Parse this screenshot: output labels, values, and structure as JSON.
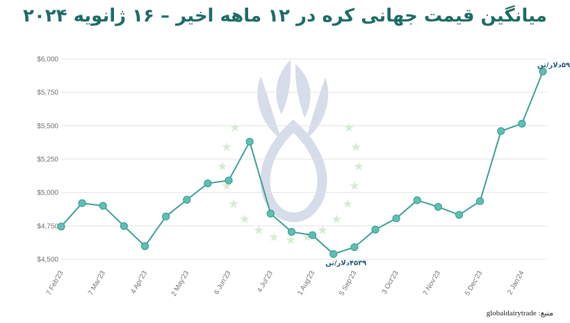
{
  "chart_data": {
    "type": "line",
    "title": "میانگین قیمت جهانی کره در ۱۲ ماهه اخیر – ۱۶ ژانویه ۲۰۲۴",
    "xlabel": "",
    "ylabel": "",
    "ylim": [
      4500,
      6000
    ],
    "yticks": [
      "$4,500",
      "$4,750",
      "$5,000",
      "$5,250",
      "$5,500",
      "$5,750",
      "$6,000"
    ],
    "ytick_values": [
      4500,
      4750,
      5000,
      5250,
      5500,
      5750,
      6000
    ],
    "xtick_labels": [
      "7 Feb'23",
      "7 Mar'23",
      "4 Apr'23",
      "2 May'23",
      "6 Jun'23",
      "4 Jul'23",
      "1 Aug'23",
      "5 Sep'23",
      "3 Oct'23",
      "7 Nov'23",
      "5 Dec'23",
      "2 Jan'24"
    ],
    "xtick_indices": [
      0,
      2,
      4,
      6,
      8,
      10,
      12,
      14,
      16,
      18,
      20,
      22
    ],
    "grid": true,
    "legend": "none",
    "line_color": "#3a9e94",
    "marker_color": "#5fbfb3",
    "values": [
      4745,
      4920,
      4900,
      4748,
      4598,
      4820,
      4945,
      5068,
      5090,
      5380,
      4842,
      4705,
      4680,
      4539,
      4590,
      4722,
      4806,
      4942,
      4892,
      4832,
      4935,
      5460,
      5515,
      5906
    ],
    "annotations": [
      {
        "index": 23,
        "text": "۵۹۰۶دلار/تن"
      },
      {
        "index": 13,
        "text": "۴۵۳۹دلار/تن"
      }
    ]
  },
  "source": "منبع: globaldairytrade"
}
